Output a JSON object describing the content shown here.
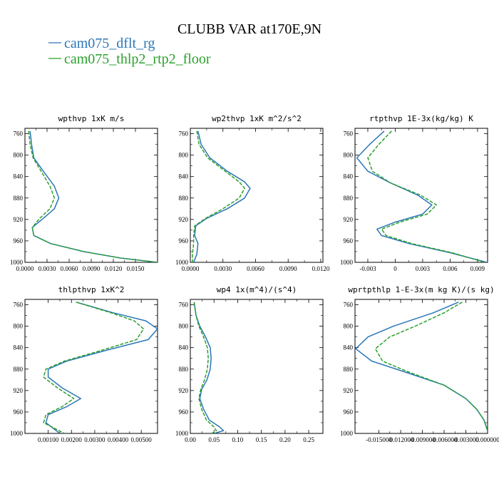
{
  "figure": {
    "title": "CLUBB VAR at170E,9N",
    "legend": [
      {
        "label": "cam075_dflt_rg",
        "color": "#2b76b8",
        "dash": false
      },
      {
        "label": "cam075_thlp2_rtp2_floor",
        "color": "#2ca02c",
        "dash": true
      }
    ]
  },
  "chart_data": [
    {
      "type": "line",
      "title": "wpthvp  1xK m/s",
      "xlim": [
        0,
        0.018
      ],
      "ylim": [
        1000,
        750
      ],
      "y_reversed": true,
      "xticks": [
        0,
        0.003,
        0.006,
        0.009,
        0.012,
        0.015
      ],
      "xtick_labels": [
        "0.0000",
        "0.0030",
        "0.0060",
        "0.0090",
        "0.0120",
        "0.0150"
      ],
      "yticks": [
        760,
        800,
        840,
        880,
        920,
        960,
        1000
      ],
      "series": [
        {
          "name": "cam075_dflt_rg",
          "color": "#2b76b8",
          "dash": false,
          "points": [
            [
              0.0007,
              755
            ],
            [
              0.0009,
              780
            ],
            [
              0.0012,
              805
            ],
            [
              0.0025,
              830
            ],
            [
              0.004,
              858
            ],
            [
              0.0046,
              880
            ],
            [
              0.004,
              900
            ],
            [
              0.0025,
              918
            ],
            [
              0.001,
              935
            ],
            [
              0.0012,
              950
            ],
            [
              0.0035,
              965
            ],
            [
              0.008,
              980
            ],
            [
              0.013,
              992
            ],
            [
              0.018,
              1000
            ]
          ]
        },
        {
          "name": "cam075_thlp2_rtp2_floor",
          "color": "#2ca02c",
          "dash": true,
          "points": [
            [
              0.0005,
              755
            ],
            [
              0.0007,
              780
            ],
            [
              0.0011,
              805
            ],
            [
              0.0022,
              830
            ],
            [
              0.0034,
              858
            ],
            [
              0.004,
              880
            ],
            [
              0.0034,
              900
            ],
            [
              0.002,
              918
            ],
            [
              0.001,
              935
            ],
            [
              0.0012,
              950
            ],
            [
              0.0035,
              965
            ],
            [
              0.008,
              980
            ],
            [
              0.013,
              992
            ],
            [
              0.018,
              1000
            ]
          ]
        }
      ]
    },
    {
      "type": "line",
      "title": "wp2thvp  1xK m^2/s^2",
      "xlim": [
        0,
        0.0122
      ],
      "ylim": [
        1000,
        750
      ],
      "y_reversed": true,
      "xticks": [
        0,
        0.003,
        0.006,
        0.009,
        0.012
      ],
      "xtick_labels": [
        "0.0000",
        "0.0030",
        "0.0060",
        "0.0090",
        "0.0120"
      ],
      "yticks": [
        760,
        800,
        840,
        880,
        920,
        960,
        1000
      ],
      "series": [
        {
          "name": "cam075_dflt_rg",
          "color": "#2b76b8",
          "dash": false,
          "points": [
            [
              0.0007,
              755
            ],
            [
              0.001,
              780
            ],
            [
              0.0018,
              805
            ],
            [
              0.0034,
              830
            ],
            [
              0.005,
              850
            ],
            [
              0.0055,
              862
            ],
            [
              0.005,
              880
            ],
            [
              0.0034,
              900
            ],
            [
              0.0015,
              918
            ],
            [
              0.0005,
              932
            ],
            [
              0.0004,
              950
            ],
            [
              0.0007,
              965
            ],
            [
              0.0006,
              985
            ],
            [
              0.0003,
              1000
            ]
          ]
        },
        {
          "name": "cam075_thlp2_rtp2_floor",
          "color": "#2ca02c",
          "dash": true,
          "points": [
            [
              0.0006,
              755
            ],
            [
              0.0008,
              780
            ],
            [
              0.0016,
              805
            ],
            [
              0.0032,
              830
            ],
            [
              0.0045,
              850
            ],
            [
              0.005,
              862
            ],
            [
              0.0045,
              880
            ],
            [
              0.003,
              900
            ],
            [
              0.0014,
              918
            ],
            [
              0.0004,
              932
            ],
            [
              0.0003,
              950
            ],
            [
              0.0003,
              965
            ],
            [
              0.0002,
              985
            ],
            [
              0.0002,
              1000
            ]
          ]
        }
      ]
    },
    {
      "type": "line",
      "title": "rtpthvp  1E-3x(kg/kg) K",
      "xlim": [
        -0.0044,
        0.0101
      ],
      "ylim": [
        1000,
        750
      ],
      "y_reversed": true,
      "xticks": [
        -0.003,
        0,
        0.003,
        0.006,
        0.009
      ],
      "xtick_labels": [
        "-0.003",
        "0",
        "0.003",
        "0.006",
        "0.009"
      ],
      "yticks": [
        760,
        800,
        840,
        880,
        920,
        960,
        1000
      ],
      "series": [
        {
          "name": "cam075_dflt_rg",
          "color": "#2b76b8",
          "dash": false,
          "points": [
            [
              -0.0012,
              755
            ],
            [
              -0.0028,
              780
            ],
            [
              -0.0042,
              805
            ],
            [
              -0.003,
              830
            ],
            [
              -0.0005,
              852
            ],
            [
              0.0025,
              875
            ],
            [
              0.004,
              893
            ],
            [
              0.003,
              910
            ],
            [
              0.0,
              925
            ],
            [
              -0.002,
              938
            ],
            [
              -0.0015,
              950
            ],
            [
              0.0015,
              965
            ],
            [
              0.006,
              982
            ],
            [
              0.01,
              1000
            ]
          ]
        },
        {
          "name": "cam075_thlp2_rtp2_floor",
          "color": "#2ca02c",
          "dash": true,
          "points": [
            [
              -0.0004,
              755
            ],
            [
              -0.0018,
              780
            ],
            [
              -0.003,
              805
            ],
            [
              -0.0025,
              830
            ],
            [
              -0.0005,
              852
            ],
            [
              0.0028,
              875
            ],
            [
              0.0045,
              893
            ],
            [
              0.0035,
              910
            ],
            [
              0.0005,
              925
            ],
            [
              -0.0015,
              938
            ],
            [
              -0.001,
              950
            ],
            [
              0.0018,
              965
            ],
            [
              0.0062,
              982
            ],
            [
              0.0098,
              1000
            ]
          ]
        }
      ]
    },
    {
      "type": "line",
      "title": "thlpthvp  1xK^2",
      "xlim": [
        0,
        0.0057
      ],
      "ylim": [
        1000,
        750
      ],
      "y_reversed": true,
      "xticks": [
        0.001,
        0.002,
        0.003,
        0.004,
        0.005
      ],
      "xtick_labels": [
        "0.00100",
        "0.00200",
        "0.00300",
        "0.00400",
        "0.00500"
      ],
      "yticks": [
        760,
        800,
        840,
        880,
        920,
        960,
        1000
      ],
      "series": [
        {
          "name": "cam075_dflt_rg",
          "color": "#2b76b8",
          "dash": false,
          "points": [
            [
              0.0022,
              755
            ],
            [
              0.0038,
              775
            ],
            [
              0.0052,
              790
            ],
            [
              0.0057,
              805
            ],
            [
              0.0053,
              825
            ],
            [
              0.0035,
              845
            ],
            [
              0.0018,
              865
            ],
            [
              0.001,
              880
            ],
            [
              0.001,
              895
            ],
            [
              0.0016,
              915
            ],
            [
              0.0024,
              935
            ],
            [
              0.0018,
              950
            ],
            [
              0.001,
              965
            ],
            [
              0.0009,
              980
            ],
            [
              0.0015,
              1000
            ]
          ]
        },
        {
          "name": "cam075_thlp2_rtp2_floor",
          "color": "#2ca02c",
          "dash": true,
          "points": [
            [
              0.0022,
              755
            ],
            [
              0.0037,
              775
            ],
            [
              0.0047,
              790
            ],
            [
              0.0051,
              805
            ],
            [
              0.0048,
              825
            ],
            [
              0.0033,
              845
            ],
            [
              0.0017,
              865
            ],
            [
              0.0009,
              880
            ],
            [
              0.0008,
              895
            ],
            [
              0.0014,
              915
            ],
            [
              0.0021,
              935
            ],
            [
              0.0016,
              950
            ],
            [
              0.0009,
              965
            ],
            [
              0.0008,
              980
            ],
            [
              0.0017,
              1000
            ]
          ]
        }
      ]
    },
    {
      "type": "line",
      "title": "wp4  1x(m^4)/(s^4)",
      "xlim": [
        0,
        0.28
      ],
      "ylim": [
        1000,
        750
      ],
      "y_reversed": true,
      "xticks": [
        0,
        0.05,
        0.1,
        0.15,
        0.2,
        0.25
      ],
      "xtick_labels": [
        "0.00",
        "0.05",
        "0.10",
        "0.15",
        "0.20",
        "0.25"
      ],
      "yticks": [
        760,
        800,
        840,
        880,
        920,
        960,
        1000
      ],
      "series": [
        {
          "name": "cam075_dflt_rg",
          "color": "#2b76b8",
          "dash": false,
          "points": [
            [
              0.008,
              755
            ],
            [
              0.012,
              780
            ],
            [
              0.02,
              800
            ],
            [
              0.032,
              820
            ],
            [
              0.042,
              840
            ],
            [
              0.044,
              860
            ],
            [
              0.042,
              880
            ],
            [
              0.035,
              900
            ],
            [
              0.024,
              918
            ],
            [
              0.02,
              935
            ],
            [
              0.028,
              955
            ],
            [
              0.04,
              975
            ],
            [
              0.062,
              988
            ],
            [
              0.07,
              995
            ],
            [
              0.05,
              1000
            ]
          ]
        },
        {
          "name": "cam075_thlp2_rtp2_floor",
          "color": "#2ca02c",
          "dash": true,
          "points": [
            [
              0.008,
              755
            ],
            [
              0.012,
              780
            ],
            [
              0.018,
              800
            ],
            [
              0.028,
              820
            ],
            [
              0.036,
              840
            ],
            [
              0.038,
              860
            ],
            [
              0.036,
              880
            ],
            [
              0.03,
              900
            ],
            [
              0.022,
              918
            ],
            [
              0.018,
              935
            ],
            [
              0.024,
              955
            ],
            [
              0.034,
              975
            ],
            [
              0.05,
              988
            ],
            [
              0.055,
              995
            ],
            [
              0.045,
              1000
            ]
          ]
        }
      ]
    },
    {
      "type": "line",
      "title": "wprtpthlp  1-E-3x(m kg K)/(s kg)",
      "xlim": [
        -0.0183,
        0.0
      ],
      "ylim": [
        1000,
        750
      ],
      "y_reversed": true,
      "xticks": [
        -0.015,
        -0.012,
        -0.009,
        -0.006,
        -0.003,
        0.0
      ],
      "xtick_labels": [
        "-0.015000",
        "-0.012000",
        "-0.009000",
        "-0.006000",
        "-0.003000",
        "0.000000"
      ],
      "yticks": [
        760,
        800,
        840,
        880,
        920,
        960,
        1000
      ],
      "series": [
        {
          "name": "cam075_dflt_rg",
          "color": "#2b76b8",
          "dash": false,
          "points": [
            [
              -0.004,
              755
            ],
            [
              -0.0075,
              775
            ],
            [
              -0.013,
              800
            ],
            [
              -0.0165,
              820
            ],
            [
              -0.0182,
              842
            ],
            [
              -0.016,
              865
            ],
            [
              -0.0115,
              885
            ],
            [
              -0.006,
              910
            ],
            [
              -0.003,
              935
            ],
            [
              -0.0015,
              955
            ],
            [
              -0.0005,
              975
            ],
            [
              0.0,
              995
            ]
          ]
        },
        {
          "name": "cam075_thlp2_rtp2_floor",
          "color": "#2ca02c",
          "dash": true,
          "points": [
            [
              -0.0035,
              755
            ],
            [
              -0.006,
              775
            ],
            [
              -0.01,
              800
            ],
            [
              -0.0135,
              820
            ],
            [
              -0.0155,
              842
            ],
            [
              -0.0145,
              865
            ],
            [
              -0.011,
              885
            ],
            [
              -0.006,
              910
            ],
            [
              -0.003,
              935
            ],
            [
              -0.0015,
              955
            ],
            [
              -0.0005,
              975
            ],
            [
              0.0,
              995
            ]
          ]
        }
      ]
    }
  ]
}
